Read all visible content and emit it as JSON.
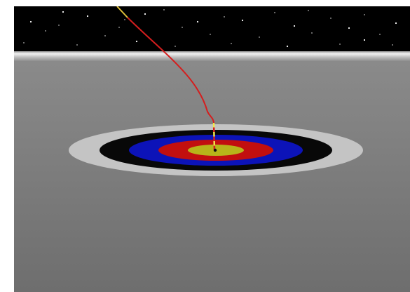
{
  "scene": {
    "sky_color": "#000000",
    "star_color": "#ffffff",
    "horizon_glow_color": "#f2f2f2",
    "ground_top_color": "#8a8a8a",
    "ground_bottom_color": "#6e6e6e",
    "target_rings": [
      {
        "name": "target-ring-outer-white",
        "color": "#c4c4c4"
      },
      {
        "name": "target-ring-black",
        "color": "#080808"
      },
      {
        "name": "target-ring-blue",
        "color": "#0c13b8"
      },
      {
        "name": "target-ring-red",
        "color": "#c20f0f"
      },
      {
        "name": "target-ring-gold",
        "color": "#b7b51a"
      }
    ],
    "trajectory_colors": {
      "high": "#e2c23a",
      "mid": "#d41e1e",
      "landing_dash_a": "#f1e64a",
      "landing_dash_b": "#d41e1e"
    }
  }
}
